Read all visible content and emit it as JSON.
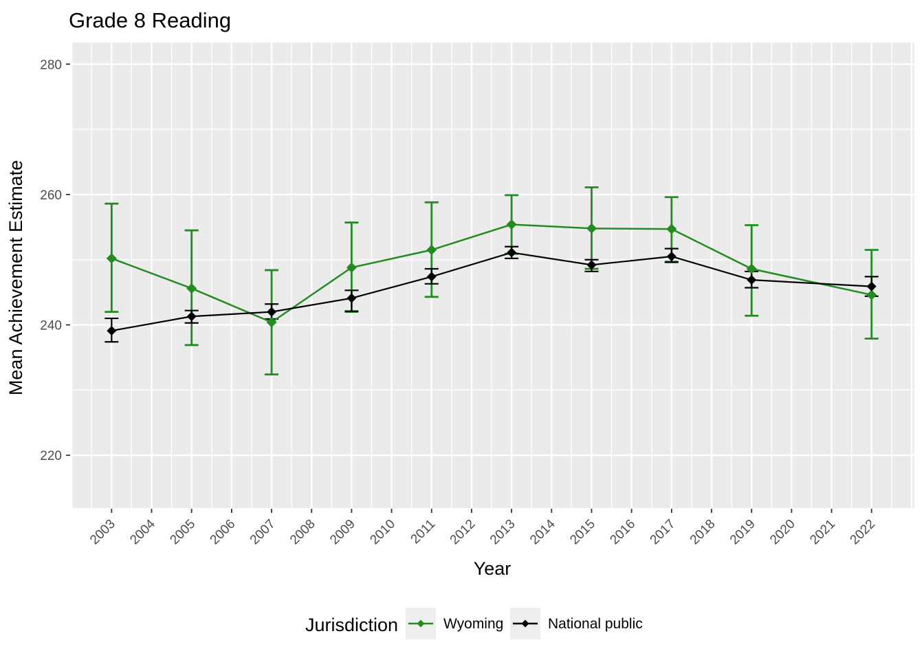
{
  "chart_data": {
    "type": "line",
    "title": "Grade 8 Reading",
    "xlabel": "Year",
    "ylabel": "Mean Achievement Estimate",
    "legend_title": "Jurisdiction",
    "legend_position": "bottom",
    "grid": true,
    "panel_background": "#EBEBEB",
    "grid_color": "#FFFFFF",
    "axis_text_color": "#4D4D4D",
    "x_ticks": [
      2003,
      2004,
      2005,
      2006,
      2007,
      2008,
      2009,
      2010,
      2011,
      2012,
      2013,
      2014,
      2015,
      2016,
      2017,
      2018,
      2019,
      2020,
      2021,
      2022
    ],
    "y_ticks": [
      220,
      240,
      260,
      280
    ],
    "y_minor": [
      230,
      250,
      270
    ],
    "x_domain": [
      2001.98,
      2023.07
    ],
    "y_domain": [
      211.9,
      283.3
    ],
    "series": [
      {
        "name": "Wyoming",
        "color": "#228B22",
        "marker": "diamond",
        "x": [
          2003,
          2005,
          2007,
          2009,
          2011,
          2013,
          2015,
          2017,
          2019,
          2022
        ],
        "y": [
          250.2,
          245.6,
          240.4,
          248.8,
          251.5,
          255.4,
          254.8,
          254.7,
          248.6,
          244.6
        ],
        "err_low": [
          242.0,
          236.9,
          232.4,
          242.0,
          244.3,
          250.9,
          248.6,
          249.7,
          241.4,
          237.9
        ],
        "err_high": [
          258.6,
          254.5,
          248.4,
          255.7,
          258.8,
          259.9,
          261.1,
          259.6,
          255.3,
          251.5
        ]
      },
      {
        "name": "National public",
        "color": "#000000",
        "marker": "diamond",
        "x": [
          2003,
          2005,
          2007,
          2009,
          2011,
          2013,
          2015,
          2017,
          2019,
          2022
        ],
        "y": [
          239.1,
          241.3,
          242.0,
          244.1,
          247.4,
          251.1,
          249.2,
          250.5,
          246.9,
          245.9
        ],
        "err_low": [
          237.4,
          240.3,
          240.9,
          242.1,
          246.3,
          250.2,
          248.2,
          249.6,
          245.7,
          244.4
        ],
        "err_high": [
          241.0,
          242.2,
          243.2,
          245.3,
          248.6,
          252.0,
          250.0,
          251.7,
          248.2,
          247.4
        ]
      }
    ]
  }
}
